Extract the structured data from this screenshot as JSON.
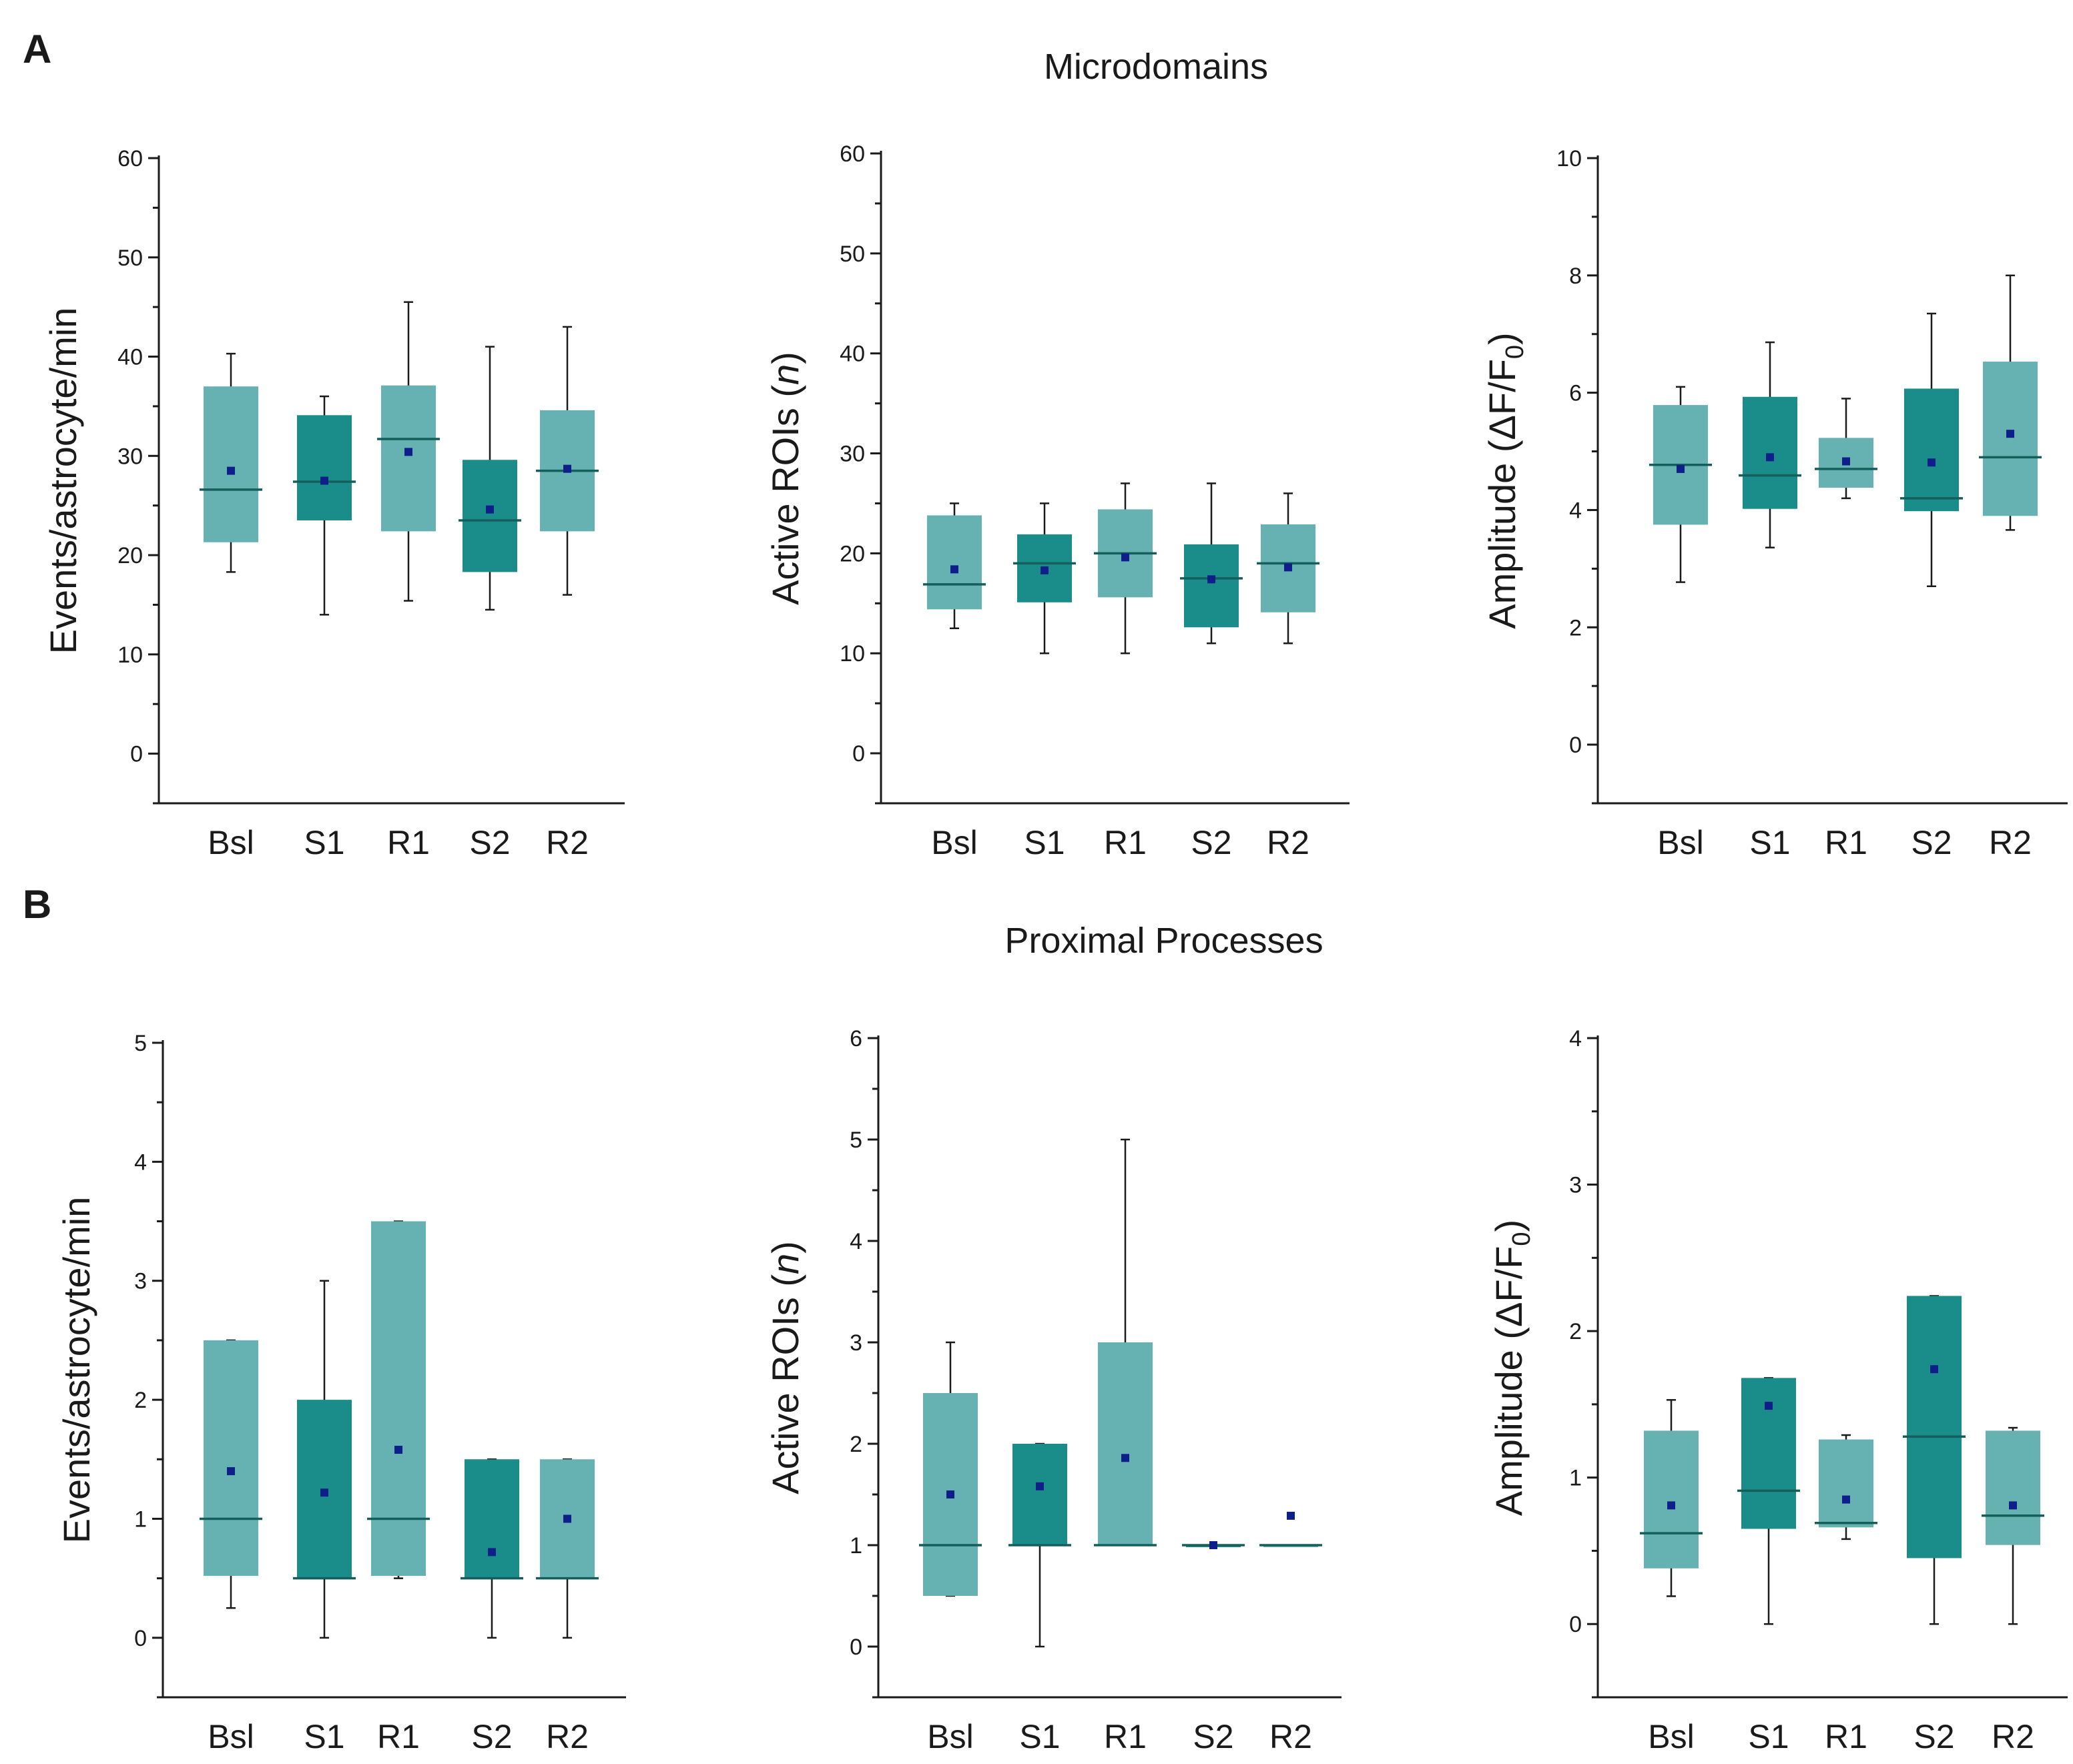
{
  "colors": {
    "light_box": "#66b2b2",
    "dark_box": "#1a8c8a",
    "median": "#145e5c",
    "mean": "#0f1f8a",
    "whisker": "#1a1a1a",
    "axis": "#1a1a1a"
  },
  "panels": [
    {
      "letter": "A",
      "title": "Microdomains"
    },
    {
      "letter": "B",
      "title": "Proximal Processes"
    }
  ],
  "chart_data": [
    {
      "type": "box",
      "panel": "A",
      "section": "Microdomains",
      "ylabel": "Events/astrocyte/min",
      "ylim": [
        -5,
        60
      ],
      "yticks": [
        0,
        10,
        20,
        30,
        40,
        50,
        60
      ],
      "categories": [
        "Bsl",
        "S1",
        "R1",
        "S2",
        "R2"
      ],
      "boxes": [
        {
          "label": "Bsl",
          "shade": "light",
          "whisker_low": 18.3,
          "q1": 21.3,
          "median": 26.6,
          "q3": 37.0,
          "whisker_high": 40.3,
          "mean": 28.5
        },
        {
          "label": "S1",
          "shade": "dark",
          "whisker_low": 14.0,
          "q1": 23.5,
          "median": 27.4,
          "q3": 34.1,
          "whisker_high": 36.0,
          "mean": 27.5
        },
        {
          "label": "R1",
          "shade": "light",
          "whisker_low": 15.4,
          "q1": 22.4,
          "median": 31.7,
          "q3": 37.1,
          "whisker_high": 45.5,
          "mean": 30.4
        },
        {
          "label": "S2",
          "shade": "dark",
          "whisker_low": 14.5,
          "q1": 18.3,
          "median": 23.5,
          "q3": 29.6,
          "whisker_high": 41.0,
          "mean": 24.6
        },
        {
          "label": "R2",
          "shade": "light",
          "whisker_low": 16.0,
          "q1": 22.4,
          "median": 28.5,
          "q3": 34.6,
          "whisker_high": 43.0,
          "mean": 28.7
        }
      ]
    },
    {
      "type": "box",
      "panel": "A",
      "section": "Microdomains",
      "ylabel": "Active ROIs (n)",
      "ylabel_main": "Active ROIs (",
      "ylabel_italic": "n",
      "ylabel_close": ")",
      "ylim": [
        -5,
        60
      ],
      "yticks": [
        0,
        10,
        20,
        30,
        40,
        50,
        60
      ],
      "categories": [
        "Bsl",
        "S1",
        "R1",
        "S2",
        "R2"
      ],
      "boxes": [
        {
          "label": "Bsl",
          "shade": "light",
          "whisker_low": 12.5,
          "q1": 14.4,
          "median": 16.9,
          "q3": 23.8,
          "whisker_high": 25.0,
          "mean": 18.4
        },
        {
          "label": "S1",
          "shade": "dark",
          "whisker_low": 10.0,
          "q1": 15.1,
          "median": 19.0,
          "q3": 21.9,
          "whisker_high": 25.0,
          "mean": 18.3
        },
        {
          "label": "R1",
          "shade": "light",
          "whisker_low": 10.0,
          "q1": 15.6,
          "median": 20.0,
          "q3": 24.4,
          "whisker_high": 27.0,
          "mean": 19.6
        },
        {
          "label": "S2",
          "shade": "dark",
          "whisker_low": 11.0,
          "q1": 12.6,
          "median": 17.5,
          "q3": 20.9,
          "whisker_high": 27.0,
          "mean": 17.4
        },
        {
          "label": "R2",
          "shade": "light",
          "whisker_low": 11.0,
          "q1": 14.1,
          "median": 19.0,
          "q3": 22.9,
          "whisker_high": 26.0,
          "mean": 18.6
        }
      ]
    },
    {
      "type": "box",
      "panel": "A",
      "section": "Microdomains",
      "ylabel": "Amplitude (ΔF/F0)",
      "ylabel_main": "Amplitude (ΔF/F",
      "ylabel_sub": "0",
      "ylabel_close": ")",
      "ylim": [
        -1,
        10
      ],
      "yticks": [
        0,
        2,
        4,
        6,
        8,
        10
      ],
      "categories": [
        "Bsl",
        "S1",
        "R1",
        "S2",
        "R2"
      ],
      "boxes": [
        {
          "label": "Bsl",
          "shade": "light",
          "whisker_low": 2.77,
          "q1": 3.75,
          "median": 4.77,
          "q3": 5.79,
          "whisker_high": 6.1,
          "mean": 4.7
        },
        {
          "label": "S1",
          "shade": "dark",
          "whisker_low": 3.36,
          "q1": 4.02,
          "median": 4.59,
          "q3": 5.93,
          "whisker_high": 6.86,
          "mean": 4.9
        },
        {
          "label": "R1",
          "shade": "light",
          "whisker_low": 4.2,
          "q1": 4.38,
          "median": 4.7,
          "q3": 5.23,
          "whisker_high": 5.9,
          "mean": 4.83
        },
        {
          "label": "S2",
          "shade": "dark",
          "whisker_low": 2.7,
          "q1": 3.98,
          "median": 4.2,
          "q3": 6.07,
          "whisker_high": 7.35,
          "mean": 4.81
        },
        {
          "label": "R2",
          "shade": "light",
          "whisker_low": 3.66,
          "q1": 3.9,
          "median": 4.9,
          "q3": 6.53,
          "whisker_high": 8.0,
          "mean": 5.3
        }
      ]
    },
    {
      "type": "box",
      "panel": "B",
      "section": "Proximal Processes",
      "ylabel": "Events/astrocyte/min",
      "ylim": [
        -0.5,
        5
      ],
      "yticks": [
        0,
        1,
        2,
        3,
        4,
        5
      ],
      "categories": [
        "Bsl",
        "S1",
        "R1",
        "S2",
        "R2"
      ],
      "boxes": [
        {
          "label": "Bsl",
          "shade": "light",
          "whisker_low": 0.25,
          "q1": 0.52,
          "median": 1.0,
          "q3": 2.5,
          "whisker_high": 2.5,
          "mean": 1.4
        },
        {
          "label": "S1",
          "shade": "dark",
          "whisker_low": 0.0,
          "q1": 0.5,
          "median": 0.5,
          "q3": 2.0,
          "whisker_high": 3.0,
          "mean": 1.22
        },
        {
          "label": "R1",
          "shade": "light",
          "whisker_low": 0.5,
          "q1": 0.52,
          "median": 1.0,
          "q3": 3.5,
          "whisker_high": 3.5,
          "mean": 1.58
        },
        {
          "label": "S2",
          "shade": "dark",
          "whisker_low": 0.0,
          "q1": 0.5,
          "median": 0.5,
          "q3": 1.5,
          "whisker_high": 1.5,
          "mean": 0.72
        },
        {
          "label": "R2",
          "shade": "light",
          "whisker_low": 0.0,
          "q1": 0.5,
          "median": 0.5,
          "q3": 1.5,
          "whisker_high": 1.5,
          "mean": 1.0
        }
      ]
    },
    {
      "type": "box",
      "panel": "B",
      "section": "Proximal Processes",
      "ylabel": "Active ROIs (n)",
      "ylabel_main": "Active ROIs (",
      "ylabel_italic": "n",
      "ylabel_close": ")",
      "ylim": [
        -0.5,
        6
      ],
      "yticks": [
        0,
        1,
        2,
        3,
        4,
        5,
        6
      ],
      "categories": [
        "Bsl",
        "S1",
        "R1",
        "S2",
        "R2"
      ],
      "boxes": [
        {
          "label": "Bsl",
          "shade": "light",
          "whisker_low": 0.5,
          "q1": 0.5,
          "median": 1.0,
          "q3": 2.5,
          "whisker_high": 3.0,
          "mean": 1.5
        },
        {
          "label": "S1",
          "shade": "dark",
          "whisker_low": 0.0,
          "q1": 1.0,
          "median": 1.0,
          "q3": 2.0,
          "whisker_high": 2.0,
          "mean": 1.58
        },
        {
          "label": "R1",
          "shade": "light",
          "whisker_low": 1.0,
          "q1": 1.0,
          "median": 1.0,
          "q3": 3.0,
          "whisker_high": 5.0,
          "mean": 1.86
        },
        {
          "label": "S2",
          "shade": "dark",
          "whisker_low": 1.0,
          "q1": 1.0,
          "median": 1.0,
          "q3": 1.0,
          "whisker_high": 1.0,
          "mean": 1.0
        },
        {
          "label": "R2",
          "shade": "light",
          "whisker_low": 1.0,
          "q1": 1.0,
          "median": 1.0,
          "q3": 1.0,
          "whisker_high": 1.0,
          "mean": 1.29
        }
      ]
    },
    {
      "type": "box",
      "panel": "B",
      "section": "Proximal Processes",
      "ylabel": "Amplitude (ΔF/F0)",
      "ylabel_main": "Amplitude (ΔF/F",
      "ylabel_sub": "0",
      "ylabel_close": ")",
      "ylim": [
        -0.5,
        4
      ],
      "yticks": [
        0,
        1,
        2,
        3,
        4
      ],
      "categories": [
        "Bsl",
        "S1",
        "R1",
        "S2",
        "R2"
      ],
      "boxes": [
        {
          "label": "Bsl",
          "shade": "light",
          "whisker_low": 0.19,
          "q1": 0.38,
          "median": 0.62,
          "q3": 1.32,
          "whisker_high": 1.53,
          "mean": 0.81
        },
        {
          "label": "S1",
          "shade": "dark",
          "whisker_low": 0.0,
          "q1": 0.65,
          "median": 0.91,
          "q3": 1.68,
          "whisker_high": 1.68,
          "mean": 1.49
        },
        {
          "label": "R1",
          "shade": "light",
          "whisker_low": 0.58,
          "q1": 0.66,
          "median": 0.69,
          "q3": 1.26,
          "whisker_high": 1.29,
          "mean": 0.85
        },
        {
          "label": "S2",
          "shade": "dark",
          "whisker_low": 0.0,
          "q1": 0.45,
          "median": 1.28,
          "q3": 2.24,
          "whisker_high": 2.24,
          "mean": 1.74
        },
        {
          "label": "R2",
          "shade": "light",
          "whisker_low": 0.0,
          "q1": 0.54,
          "median": 0.74,
          "q3": 1.32,
          "whisker_high": 1.34,
          "mean": 0.81
        }
      ]
    }
  ]
}
